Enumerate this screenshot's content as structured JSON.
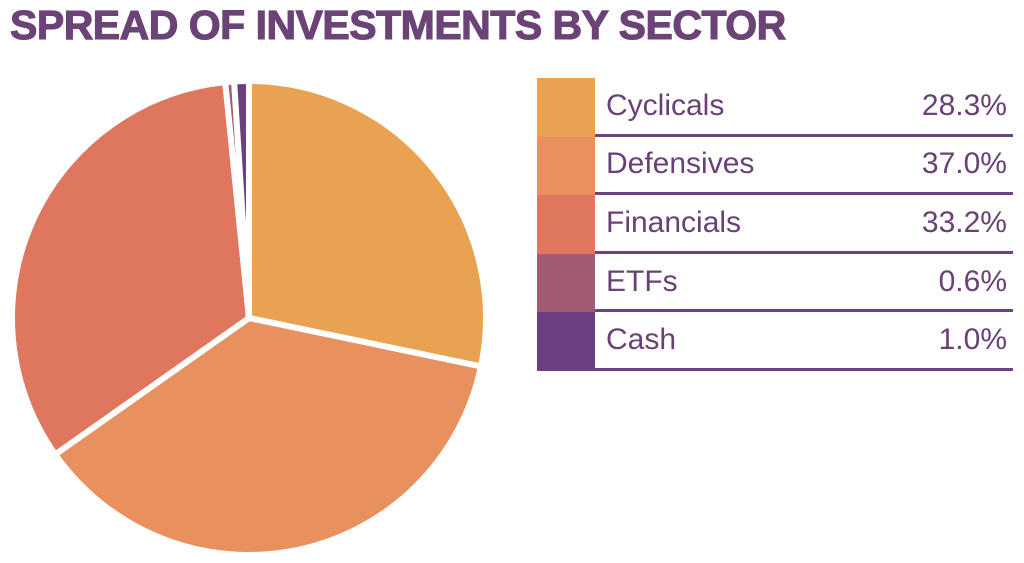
{
  "title": "SPREAD OF INVESTMENTS BY SECTOR",
  "colors": {
    "title_text": "#6B4377",
    "legend_text": "#6A4076",
    "divider": "#6E4383",
    "background": "#FFFFFF",
    "slice_separator": "#FFFFFF"
  },
  "chart_data": {
    "type": "pie",
    "title": "SPREAD OF INVESTMENTS BY SECTOR",
    "categories": [
      "Cyclicals",
      "Defensives",
      "Financials",
      "ETFs",
      "Cash"
    ],
    "values": [
      28.3,
      37.0,
      33.2,
      0.6,
      1.0
    ],
    "labels": [
      "28.3%",
      "37.0%",
      "33.2%",
      "0.6%",
      "1.0%"
    ],
    "colors": [
      "#E9A251",
      "#E8915E",
      "#DF775E",
      "#A25B75",
      "#6C4080"
    ],
    "start_angle_deg": 0,
    "direction": "clockwise",
    "legend_position": "right",
    "grid": false
  }
}
